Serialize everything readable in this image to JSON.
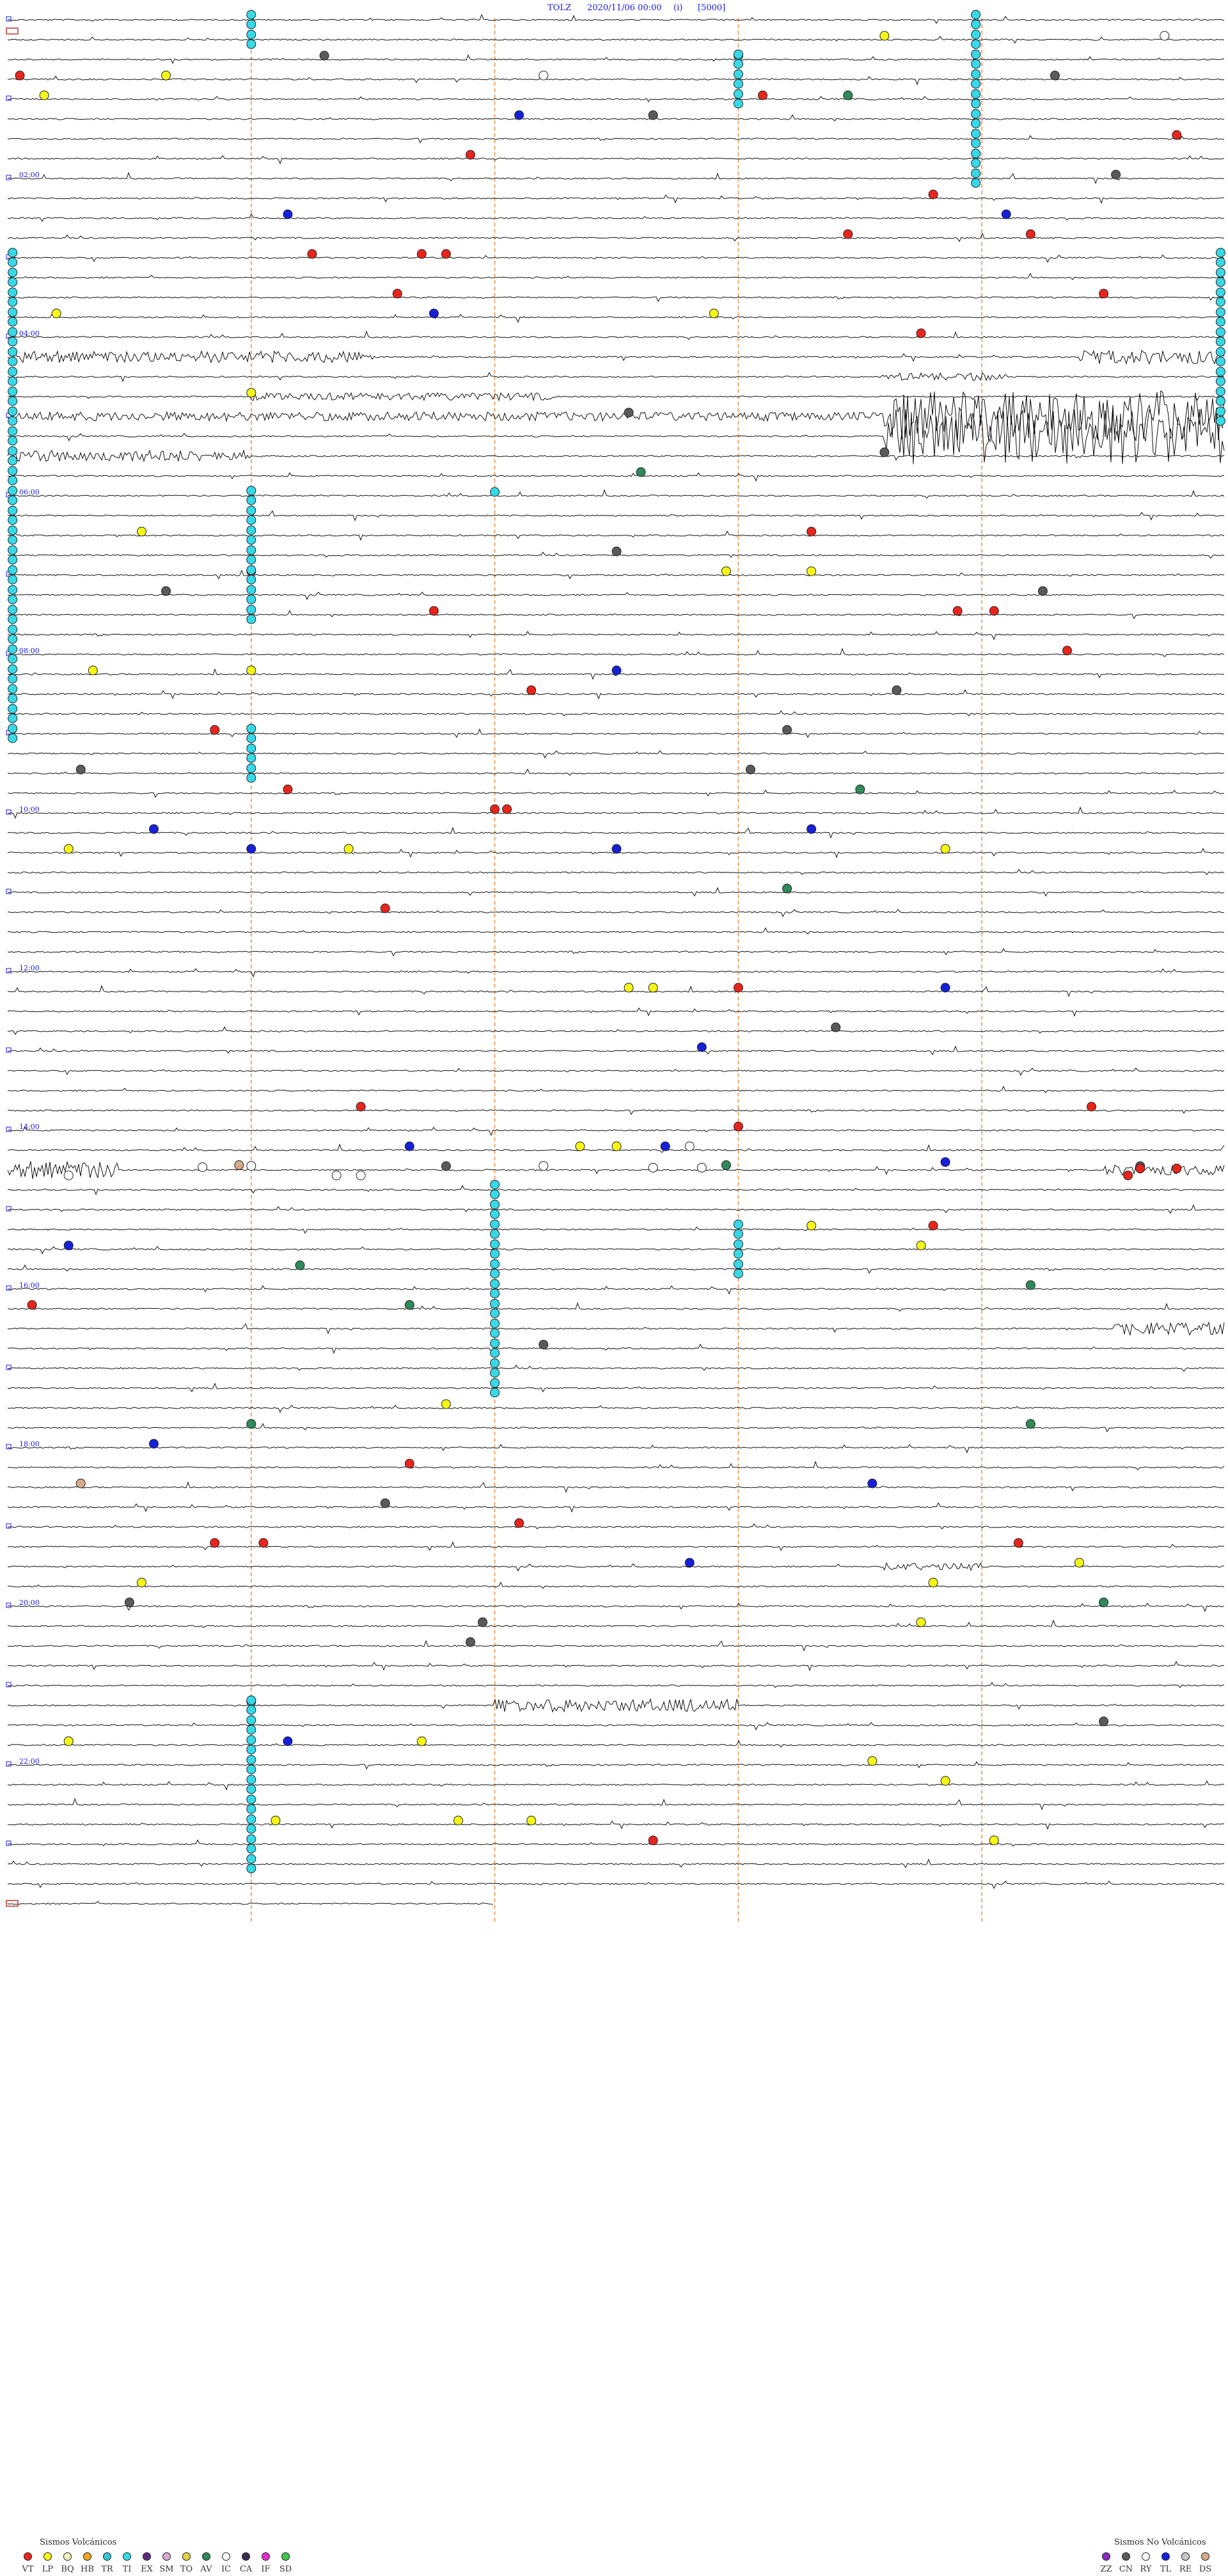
{
  "header": {
    "station": "TOLZ",
    "datetime": "2020/11/06 00:00",
    "mode": "(i)",
    "scale": "[5000]"
  },
  "colors": {
    "trace": "#111111",
    "hour_guide": "#e8914a",
    "hour_label": "#1a1ad8",
    "header_text": "#1a1ad8"
  },
  "legend": {
    "volcanic": {
      "title": "Sismos Volcánicos",
      "items": [
        {
          "code": "VT",
          "color": "#e8251c"
        },
        {
          "code": "LP",
          "color": "#f7f716"
        },
        {
          "code": "BQ",
          "color": "#f9f4c2"
        },
        {
          "code": "HB",
          "color": "#f4a11c"
        },
        {
          "code": "TR",
          "color": "#2cc8d8"
        },
        {
          "code": "TI",
          "color": "#36d9e8"
        },
        {
          "code": "EX",
          "color": "#5c2a80"
        },
        {
          "code": "SM",
          "color": "#d8a8d8"
        },
        {
          "code": "TO",
          "color": "#e6d24b"
        },
        {
          "code": "AV",
          "color": "#2e8a5a"
        },
        {
          "code": "IC",
          "color": "#ffffff"
        },
        {
          "code": "CA",
          "color": "#3c2a55"
        },
        {
          "code": "IF",
          "color": "#e52fd2"
        },
        {
          "code": "SD",
          "color": "#3ec64b"
        }
      ]
    },
    "non_volcanic": {
      "title": "Sismos No Volcánicos",
      "items": [
        {
          "code": "ZZ",
          "color": "#8a2cc0"
        },
        {
          "code": "CN",
          "color": "#5a5a5a"
        },
        {
          "code": "RY",
          "color": "#ffffff"
        },
        {
          "code": "TL",
          "color": "#1520d8"
        },
        {
          "code": "RE",
          "color": "#c8c8c8"
        },
        {
          "code": "DS",
          "color": "#d8a888"
        }
      ]
    }
  },
  "chart_data": {
    "type": "helicorder",
    "rows": 96,
    "minutes_per_row": 15,
    "hour_labels": [
      "02:00",
      "04:00",
      "06:00",
      "08:00",
      "10:00",
      "12:00",
      "14:00",
      "16:00",
      "18:00",
      "20:00",
      "22:00"
    ],
    "hour_label_rows": [
      8,
      16,
      24,
      32,
      40,
      48,
      56,
      64,
      72,
      80,
      88
    ],
    "bursts": [
      {
        "row": 17,
        "from": 0,
        "to": 0.3,
        "amp": 9
      },
      {
        "row": 17,
        "from": 0.88,
        "to": 1.0,
        "amp": 11
      },
      {
        "row": 18,
        "from": 0.72,
        "to": 0.82,
        "amp": 6
      },
      {
        "row": 19,
        "from": 0.2,
        "to": 0.45,
        "amp": 6
      },
      {
        "row": 20,
        "from": 0.0,
        "to": 0.75,
        "amp": 7
      },
      {
        "row": 20,
        "from": 0.72,
        "to": 1.0,
        "amp": 40
      },
      {
        "row": 21,
        "from": 0.72,
        "to": 1.0,
        "amp": 44
      },
      {
        "row": 22,
        "from": 0.0,
        "to": 0.2,
        "amp": 9
      },
      {
        "row": 58,
        "from": 0.0,
        "to": 0.09,
        "amp": 14
      },
      {
        "row": 58,
        "from": 0.9,
        "to": 1.0,
        "amp": 8
      },
      {
        "row": 66,
        "from": 0.9,
        "to": 1.0,
        "amp": 10
      },
      {
        "row": 78,
        "from": 0.72,
        "to": 0.8,
        "amp": 6
      },
      {
        "row": 85,
        "from": 0.4,
        "to": 0.6,
        "amp": 10
      }
    ],
    "event_markers": [
      {
        "row": 1,
        "x": 0.72,
        "type": "LP"
      },
      {
        "row": 1,
        "x": 0.95,
        "type": "IC"
      },
      {
        "row": 2,
        "x": 0.26,
        "type": "CN"
      },
      {
        "row": 2,
        "x": 0.6,
        "type": "TI"
      },
      {
        "row": 3,
        "x": 0.01,
        "type": "VT"
      },
      {
        "row": 3,
        "x": 0.13,
        "type": "LP"
      },
      {
        "row": 3,
        "x": 0.44,
        "type": "IC"
      },
      {
        "row": 3,
        "x": 0.86,
        "type": "CN"
      },
      {
        "row": 4,
        "x": 0.03,
        "type": "LP"
      },
      {
        "row": 4,
        "x": 0.62,
        "type": "VT"
      },
      {
        "row": 4,
        "x": 0.69,
        "type": "AV"
      },
      {
        "row": 5,
        "x": 0.42,
        "type": "TL"
      },
      {
        "row": 5,
        "x": 0.53,
        "type": "CN"
      },
      {
        "row": 6,
        "x": 0.96,
        "type": "VT"
      },
      {
        "row": 7,
        "x": 0.38,
        "type": "VT"
      },
      {
        "row": 8,
        "x": 0.91,
        "type": "CN"
      },
      {
        "row": 9,
        "x": 0.76,
        "type": "VT"
      },
      {
        "row": 10,
        "x": 0.82,
        "type": "TL"
      },
      {
        "row": 10,
        "x": 0.23,
        "type": "TL"
      },
      {
        "row": 11,
        "x": 0.69,
        "type": "VT"
      },
      {
        "row": 11,
        "x": 0.84,
        "type": "VT"
      },
      {
        "row": 12,
        "x": 0.25,
        "type": "VT"
      },
      {
        "row": 12,
        "x": 0.34,
        "type": "VT"
      },
      {
        "row": 12,
        "x": 0.36,
        "type": "VT"
      },
      {
        "row": 14,
        "x": 0.32,
        "type": "VT"
      },
      {
        "row": 14,
        "x": 0.9,
        "type": "VT"
      },
      {
        "row": 15,
        "x": 0.04,
        "type": "LP"
      },
      {
        "row": 15,
        "x": 0.35,
        "type": "TL"
      },
      {
        "row": 15,
        "x": 0.58,
        "type": "LP"
      },
      {
        "row": 16,
        "x": 0.75,
        "type": "VT"
      },
      {
        "row": 19,
        "x": 0.2,
        "type": "LP"
      },
      {
        "row": 20,
        "x": 0.51,
        "type": "CN"
      },
      {
        "row": 22,
        "x": 0.72,
        "type": "CN"
      },
      {
        "row": 23,
        "x": 0.52,
        "type": "AV"
      },
      {
        "row": 24,
        "x": 0.4,
        "type": "TI"
      },
      {
        "row": 26,
        "x": 0.11,
        "type": "LP"
      },
      {
        "row": 26,
        "x": 0.66,
        "type": "VT"
      },
      {
        "row": 27,
        "x": 0.5,
        "type": "CN"
      },
      {
        "row": 28,
        "x": 0.2,
        "type": "VT"
      },
      {
        "row": 28,
        "x": 0.59,
        "type": "LP"
      },
      {
        "row": 28,
        "x": 0.66,
        "type": "LP"
      },
      {
        "row": 29,
        "x": 0.13,
        "type": "CN"
      },
      {
        "row": 29,
        "x": 0.85,
        "type": "CN"
      },
      {
        "row": 30,
        "x": 0.35,
        "type": "VT"
      },
      {
        "row": 30,
        "x": 0.78,
        "type": "VT"
      },
      {
        "row": 30,
        "x": 0.81,
        "type": "VT"
      },
      {
        "row": 32,
        "x": 0.87,
        "type": "VT"
      },
      {
        "row": 33,
        "x": 0.07,
        "type": "LP"
      },
      {
        "row": 33,
        "x": 0.2,
        "type": "LP"
      },
      {
        "row": 33,
        "x": 0.5,
        "type": "TL"
      },
      {
        "row": 34,
        "x": 0.43,
        "type": "VT"
      },
      {
        "row": 34,
        "x": 0.73,
        "type": "CN"
      },
      {
        "row": 36,
        "x": 0.17,
        "type": "VT"
      },
      {
        "row": 36,
        "x": 0.64,
        "type": "CN"
      },
      {
        "row": 38,
        "x": 0.06,
        "type": "CN"
      },
      {
        "row": 38,
        "x": 0.61,
        "type": "CN"
      },
      {
        "row": 39,
        "x": 0.7,
        "type": "AV"
      },
      {
        "row": 39,
        "x": 0.23,
        "type": "VT"
      },
      {
        "row": 40,
        "x": 0.4,
        "type": "VT"
      },
      {
        "row": 40,
        "x": 0.41,
        "type": "VT"
      },
      {
        "row": 41,
        "x": 0.12,
        "type": "TL"
      },
      {
        "row": 41,
        "x": 0.66,
        "type": "TL"
      },
      {
        "row": 42,
        "x": 0.05,
        "type": "LP"
      },
      {
        "row": 42,
        "x": 0.28,
        "type": "LP"
      },
      {
        "row": 42,
        "x": 0.2,
        "type": "TL"
      },
      {
        "row": 42,
        "x": 0.5,
        "type": "TL"
      },
      {
        "row": 42,
        "x": 0.77,
        "type": "LP"
      },
      {
        "row": 44,
        "x": 0.64,
        "type": "AV"
      },
      {
        "row": 45,
        "x": 0.31,
        "type": "VT"
      },
      {
        "row": 49,
        "x": 0.51,
        "type": "LP"
      },
      {
        "row": 49,
        "x": 0.53,
        "type": "LP"
      },
      {
        "row": 49,
        "x": 0.6,
        "type": "VT"
      },
      {
        "row": 49,
        "x": 0.77,
        "type": "TL"
      },
      {
        "row": 51,
        "x": 0.68,
        "type": "CN"
      },
      {
        "row": 52,
        "x": 0.57,
        "type": "TL"
      },
      {
        "row": 55,
        "x": 0.29,
        "type": "VT"
      },
      {
        "row": 55,
        "x": 0.89,
        "type": "VT"
      },
      {
        "row": 56,
        "x": 0.6,
        "type": "VT"
      },
      {
        "row": 57,
        "x": 0.33,
        "type": "TL"
      },
      {
        "row": 57,
        "x": 0.47,
        "type": "LP"
      },
      {
        "row": 57,
        "x": 0.5,
        "type": "LP"
      },
      {
        "row": 57,
        "x": 0.54,
        "type": "TL"
      },
      {
        "row": 58,
        "x": 0.36,
        "type": "CN"
      },
      {
        "row": 58,
        "x": 0.93,
        "type": "CN"
      },
      {
        "row": 61,
        "x": 0.66,
        "type": "LP"
      },
      {
        "row": 61,
        "x": 0.76,
        "type": "VT"
      },
      {
        "row": 62,
        "x": 0.05,
        "type": "TL"
      },
      {
        "row": 62,
        "x": 0.75,
        "type": "LP"
      },
      {
        "row": 63,
        "x": 0.24,
        "type": "AV"
      },
      {
        "row": 64,
        "x": 0.84,
        "type": "AV"
      },
      {
        "row": 65,
        "x": 0.33,
        "type": "AV"
      },
      {
        "row": 65,
        "x": 0.02,
        "type": "VT"
      },
      {
        "row": 67,
        "x": 0.44,
        "type": "CN"
      },
      {
        "row": 70,
        "x": 0.36,
        "type": "LP"
      },
      {
        "row": 71,
        "x": 0.2,
        "type": "AV"
      },
      {
        "row": 71,
        "x": 0.84,
        "type": "AV"
      },
      {
        "row": 72,
        "x": 0.12,
        "type": "TL"
      },
      {
        "row": 73,
        "x": 0.33,
        "type": "VT"
      },
      {
        "row": 74,
        "x": 0.06,
        "type": "DS"
      },
      {
        "row": 74,
        "x": 0.71,
        "type": "TL"
      },
      {
        "row": 75,
        "x": 0.31,
        "type": "CN"
      },
      {
        "row": 76,
        "x": 0.42,
        "type": "VT"
      },
      {
        "row": 77,
        "x": 0.83,
        "type": "VT"
      },
      {
        "row": 77,
        "x": 0.17,
        "type": "VT"
      },
      {
        "row": 77,
        "x": 0.21,
        "type": "VT"
      },
      {
        "row": 78,
        "x": 0.56,
        "type": "TL"
      },
      {
        "row": 78,
        "x": 0.88,
        "type": "LP"
      },
      {
        "row": 79,
        "x": 0.76,
        "type": "LP"
      },
      {
        "row": 79,
        "x": 0.11,
        "type": "LP"
      },
      {
        "row": 80,
        "x": 0.9,
        "type": "AV"
      },
      {
        "row": 80,
        "x": 0.1,
        "type": "CN"
      },
      {
        "row": 81,
        "x": 0.39,
        "type": "CN"
      },
      {
        "row": 81,
        "x": 0.75,
        "type": "LP"
      },
      {
        "row": 82,
        "x": 0.38,
        "type": "CN"
      },
      {
        "row": 85,
        "x": 0.2,
        "type": "TI"
      },
      {
        "row": 86,
        "x": 0.9,
        "type": "CN"
      },
      {
        "row": 87,
        "x": 0.05,
        "type": "LP"
      },
      {
        "row": 87,
        "x": 0.23,
        "type": "TL"
      },
      {
        "row": 87,
        "x": 0.34,
        "type": "LP"
      },
      {
        "row": 88,
        "x": 0.71,
        "type": "LP"
      },
      {
        "row": 89,
        "x": 0.77,
        "type": "LP"
      },
      {
        "row": 91,
        "x": 0.22,
        "type": "LP"
      },
      {
        "row": 91,
        "x": 0.37,
        "type": "LP"
      },
      {
        "row": 91,
        "x": 0.43,
        "type": "LP"
      },
      {
        "row": 92,
        "x": 0.53,
        "type": "VT"
      },
      {
        "row": 92,
        "x": 0.81,
        "type": "LP"
      }
    ],
    "ti_columns": [
      {
        "x": 0.2,
        "from": 0,
        "to": 1
      },
      {
        "x": 0.795,
        "from": 0,
        "to": 8
      },
      {
        "x": 0.6,
        "from": 2,
        "to": 4
      },
      {
        "x": 0.2,
        "from": 24,
        "to": 30
      },
      {
        "x": 0.2,
        "from": 36,
        "to": 38
      },
      {
        "x": 0.4,
        "from": 59,
        "to": 69
      },
      {
        "x": 0.6,
        "from": 61,
        "to": 63
      },
      {
        "x": 0.2,
        "from": 85,
        "to": 93
      },
      {
        "x": 0.004,
        "from": 12,
        "to": 36
      },
      {
        "x": 0.996,
        "from": 12,
        "to": 20
      }
    ],
    "extra_markers": [
      {
        "x": 0.56,
        "y": 0.3705,
        "type": "IC"
      },
      {
        "x": 0.16,
        "y": 0.3786,
        "type": "IC"
      },
      {
        "x": 0.19,
        "y": 0.3778,
        "type": "DS"
      },
      {
        "x": 0.2,
        "y": 0.3781,
        "type": "IC"
      },
      {
        "x": 0.44,
        "y": 0.3781,
        "type": "IC"
      },
      {
        "x": 0.59,
        "y": 0.3778,
        "type": "AV"
      },
      {
        "x": 0.77,
        "y": 0.3766,
        "type": "TL"
      },
      {
        "x": 0.53,
        "y": 0.3788,
        "type": "IC"
      },
      {
        "x": 0.57,
        "y": 0.3788,
        "type": "IC"
      },
      {
        "x": 0.93,
        "y": 0.3791,
        "type": "VT"
      },
      {
        "x": 0.96,
        "y": 0.3791,
        "type": "VT"
      },
      {
        "x": 0.05,
        "y": 0.3818,
        "type": "IC"
      },
      {
        "x": 0.27,
        "y": 0.3818,
        "type": "IC"
      },
      {
        "x": 0.29,
        "y": 0.3818,
        "type": "IC"
      },
      {
        "x": 0.92,
        "y": 0.3818,
        "type": "VT"
      }
    ]
  }
}
